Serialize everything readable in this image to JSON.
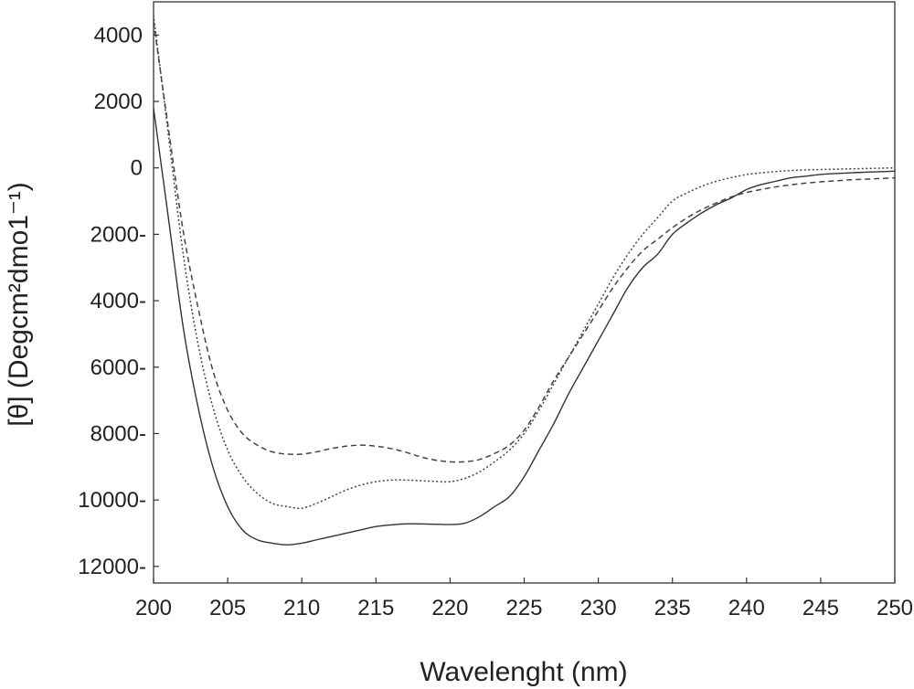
{
  "chart_data": {
    "type": "line",
    "xlabel": "Wavelenght (nm)",
    "ylabel": "[θ] (Degcm²dmo1⁻¹)",
    "xlim": [
      200,
      250
    ],
    "ylim": [
      -12500,
      5000
    ],
    "grid": false,
    "x_ticks": [
      200,
      205,
      210,
      215,
      220,
      225,
      230,
      235,
      240,
      245,
      250
    ],
    "x_tick_labels": [
      "200",
      "205",
      "210",
      "215",
      "220",
      "225",
      "230",
      "235",
      "240",
      "245",
      "250"
    ],
    "y_ticks": [
      4000,
      2000,
      0,
      -2000,
      -4000,
      -6000,
      -8000,
      -10000,
      -12000
    ],
    "y_tick_labels": [
      "4000",
      "2000",
      "0",
      "2000-",
      "4000-",
      "6000-",
      "8000-",
      "10000-",
      "12000-"
    ],
    "series": [
      {
        "style": "solid",
        "color": "#333333",
        "x": [
          200,
          201,
          202,
          203,
          204,
          205,
          206,
          207,
          208,
          209,
          210,
          211,
          212,
          213,
          214,
          215,
          216,
          217,
          218,
          219,
          220,
          221,
          222,
          223,
          224,
          225,
          226,
          227,
          228,
          229,
          230,
          231,
          232,
          233,
          234,
          235,
          236,
          237,
          238,
          239,
          240,
          241,
          242,
          243,
          244,
          245,
          246,
          247,
          248,
          249,
          250
        ],
        "y": [
          1800,
          -1500,
          -4800,
          -7200,
          -9000,
          -10200,
          -10900,
          -11200,
          -11300,
          -11350,
          -11300,
          -11200,
          -11100,
          -11000,
          -10900,
          -10800,
          -10750,
          -10720,
          -10720,
          -10730,
          -10740,
          -10700,
          -10500,
          -10200,
          -9900,
          -9300,
          -8500,
          -7700,
          -6800,
          -6000,
          -5200,
          -4400,
          -3600,
          -3000,
          -2600,
          -2000,
          -1650,
          -1350,
          -1100,
          -900,
          -650,
          -500,
          -400,
          -300,
          -250,
          -200,
          -170,
          -150,
          -130,
          -115,
          -100
        ]
      },
      {
        "style": "dotted",
        "color": "#444444",
        "x": [
          200,
          201,
          202,
          203,
          204,
          205,
          206,
          207,
          208,
          209,
          210,
          211,
          212,
          213,
          214,
          215,
          216,
          217,
          218,
          219,
          220,
          221,
          222,
          223,
          224,
          225,
          226,
          227,
          228,
          229,
          230,
          231,
          232,
          233,
          234,
          235,
          236,
          237,
          238,
          239,
          240,
          241,
          242,
          243,
          244,
          245,
          246,
          247,
          248,
          249,
          250
        ],
        "y": [
          4600,
          1000,
          -2600,
          -5300,
          -7200,
          -8500,
          -9300,
          -9800,
          -10100,
          -10200,
          -10250,
          -10100,
          -9900,
          -9700,
          -9550,
          -9450,
          -9400,
          -9400,
          -9420,
          -9440,
          -9450,
          -9350,
          -9150,
          -8850,
          -8500,
          -8000,
          -7300,
          -6500,
          -5700,
          -4900,
          -4100,
          -3300,
          -2600,
          -2000,
          -1500,
          -1000,
          -750,
          -550,
          -400,
          -290,
          -200,
          -150,
          -110,
          -80,
          -60,
          -50,
          -40,
          -30,
          -20,
          -10,
          0
        ]
      },
      {
        "style": "dashed",
        "color": "#444444",
        "x": [
          200,
          201,
          202,
          203,
          204,
          205,
          206,
          207,
          208,
          209,
          210,
          211,
          212,
          213,
          214,
          215,
          216,
          217,
          218,
          219,
          220,
          221,
          222,
          223,
          224,
          225,
          226,
          227,
          228,
          229,
          230,
          231,
          232,
          233,
          234,
          235,
          236,
          237,
          238,
          239,
          240,
          241,
          242,
          243,
          244,
          245,
          246,
          247,
          248,
          249,
          250
        ],
        "y": [
          4400,
          1200,
          -1900,
          -4200,
          -6100,
          -7300,
          -8000,
          -8350,
          -8550,
          -8620,
          -8620,
          -8550,
          -8450,
          -8380,
          -8350,
          -8380,
          -8450,
          -8560,
          -8700,
          -8800,
          -8850,
          -8850,
          -8780,
          -8600,
          -8350,
          -7900,
          -7200,
          -6400,
          -5700,
          -5000,
          -4300,
          -3600,
          -3000,
          -2500,
          -2150,
          -1800,
          -1500,
          -1250,
          -1050,
          -870,
          -740,
          -650,
          -570,
          -510,
          -460,
          -420,
          -390,
          -360,
          -340,
          -320,
          -300
        ]
      }
    ]
  }
}
